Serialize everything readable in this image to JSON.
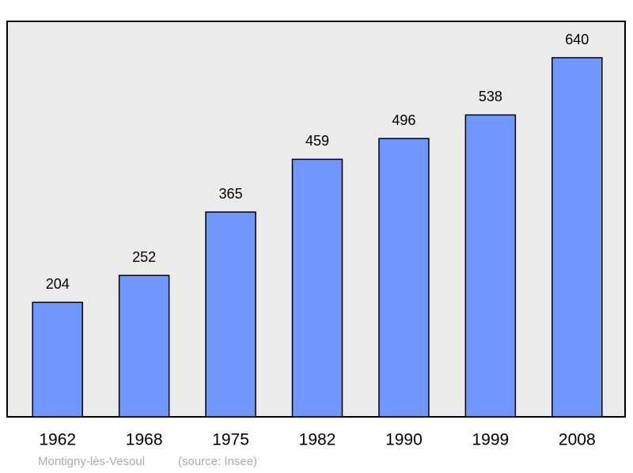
{
  "chart_data": {
    "type": "bar",
    "categories": [
      "1962",
      "1968",
      "1975",
      "1982",
      "1990",
      "1999",
      "2008"
    ],
    "values": [
      204,
      252,
      365,
      459,
      496,
      538,
      640
    ],
    "color": "#7096ff",
    "caption": "Montigny-lès-Vesoul",
    "source": "(source: Insee)"
  }
}
